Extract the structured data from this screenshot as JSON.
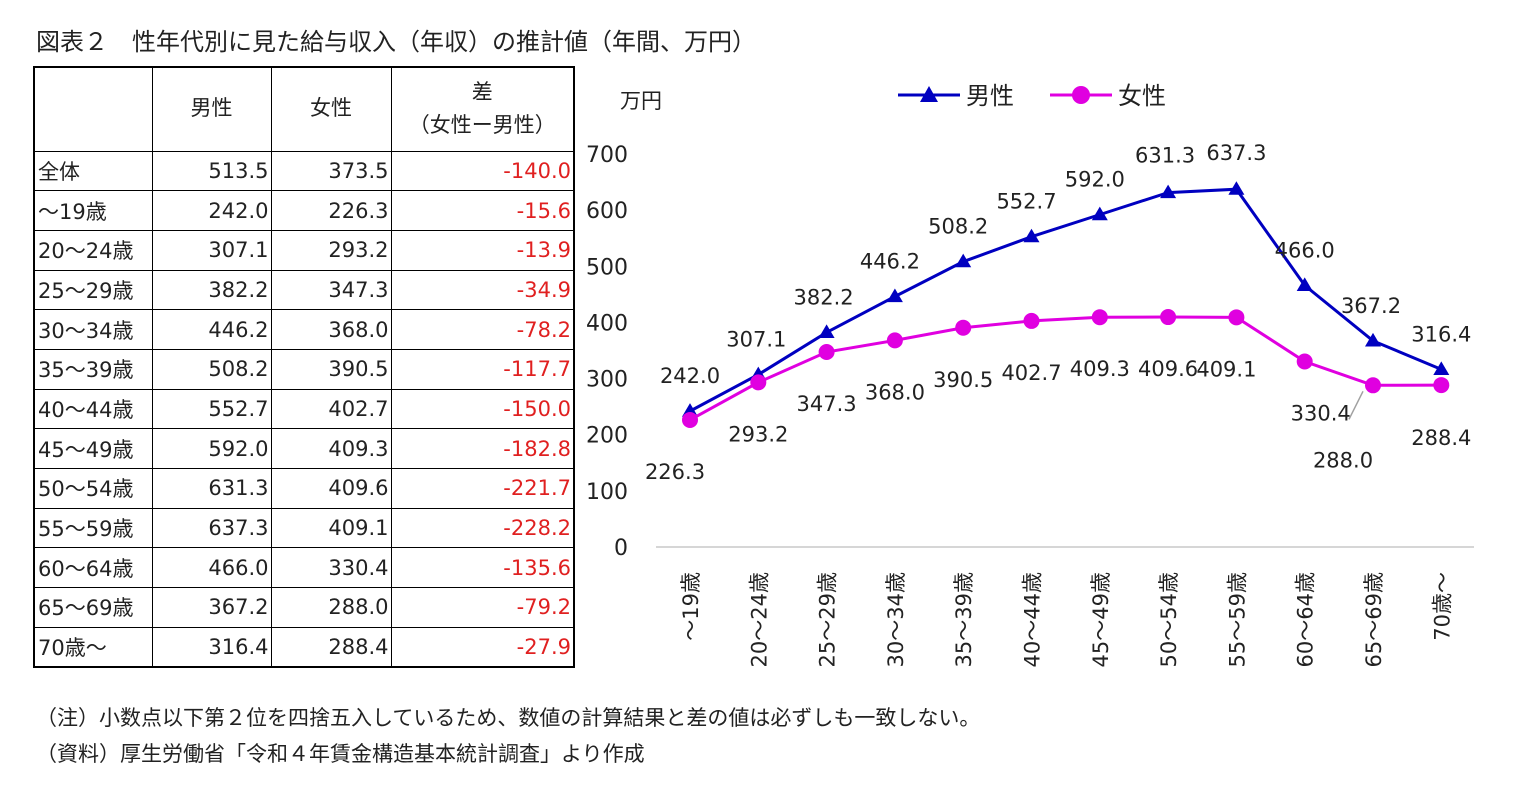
{
  "title": "図表２　性年代別に見た給与収入（年収）の推計値（年間、万円）",
  "table": {
    "columns": [
      "",
      "男性",
      "女性",
      "差",
      "（女性ー男性）"
    ],
    "rows": [
      {
        "label": "全体",
        "male": "513.5",
        "female": "373.5",
        "diff": "-140.0"
      },
      {
        "label": "～19歳",
        "male": "242.0",
        "female": "226.3",
        "diff": "-15.6"
      },
      {
        "label": "20～24歳",
        "male": "307.1",
        "female": "293.2",
        "diff": "-13.9"
      },
      {
        "label": "25～29歳",
        "male": "382.2",
        "female": "347.3",
        "diff": "-34.9"
      },
      {
        "label": "30～34歳",
        "male": "446.2",
        "female": "368.0",
        "diff": "-78.2"
      },
      {
        "label": "35～39歳",
        "male": "508.2",
        "female": "390.5",
        "diff": "-117.7"
      },
      {
        "label": "40～44歳",
        "male": "552.7",
        "female": "402.7",
        "diff": "-150.0"
      },
      {
        "label": "45～49歳",
        "male": "592.0",
        "female": "409.3",
        "diff": "-182.8"
      },
      {
        "label": "50～54歳",
        "male": "631.3",
        "female": "409.6",
        "diff": "-221.7"
      },
      {
        "label": "55～59歳",
        "male": "637.3",
        "female": "409.1",
        "diff": "-228.2"
      },
      {
        "label": "60～64歳",
        "male": "466.0",
        "female": "330.4",
        "diff": "-135.6"
      },
      {
        "label": "65～69歳",
        "male": "367.2",
        "female": "288.0",
        "diff": "-79.2"
      },
      {
        "label": "70歳～",
        "male": "316.4",
        "female": "288.4",
        "diff": "-27.9"
      }
    ]
  },
  "chart_data": {
    "type": "line",
    "ylabel": "万円",
    "ylim": [
      0,
      700
    ],
    "yticks": [
      0,
      100,
      200,
      300,
      400,
      500,
      600,
      700
    ],
    "grid": false,
    "legend": "top",
    "categories": [
      "～19歳",
      "20～24歳",
      "25～29歳",
      "30～34歳",
      "35～39歳",
      "40～44歳",
      "45～49歳",
      "50～54歳",
      "55～59歳",
      "60～64歳",
      "65～69歳",
      "70歳～"
    ],
    "series": [
      {
        "name": "男性",
        "color": "#0000c0",
        "marker": "triangle",
        "values": [
          242.0,
          307.1,
          382.2,
          446.2,
          508.2,
          552.7,
          592.0,
          631.3,
          637.3,
          466.0,
          367.2,
          316.4
        ],
        "labels": [
          "242.0",
          "307.1",
          "382.2",
          "446.2",
          "508.2",
          "552.7",
          "592.0",
          "631.3",
          "637.3",
          "466.0",
          "367.2",
          "316.4"
        ]
      },
      {
        "name": "女性",
        "color": "#e000e0",
        "marker": "circle",
        "values": [
          226.3,
          293.2,
          347.3,
          368.0,
          390.5,
          402.7,
          409.3,
          409.6,
          409.1,
          330.4,
          288.0,
          288.4
        ],
        "labels": [
          "226.3",
          "293.2",
          "347.3",
          "368.0",
          "390.5",
          "402.7",
          "409.3",
          "409.6",
          "409.1",
          "330.4",
          "288.0",
          "288.4"
        ]
      }
    ]
  },
  "colors": {
    "negative": "#e02020",
    "axis": "#c8c8c8",
    "leader": "#a0a0a0"
  },
  "notes": [
    "（注）小数点以下第２位を四捨五入しているため、数値の計算結果と差の値は必ずしも一致しない。",
    "（資料）厚生労働省「令和４年賃金構造基本統計調査」より作成"
  ]
}
